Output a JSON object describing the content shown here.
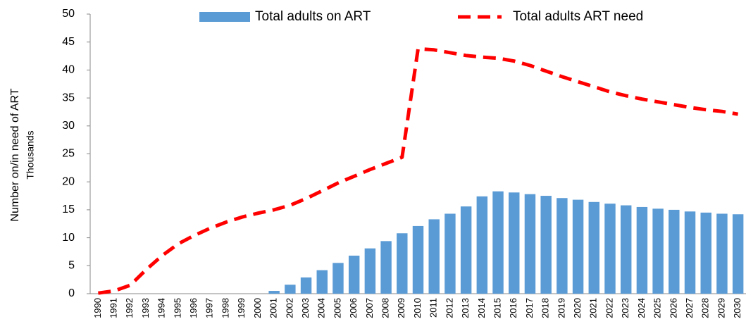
{
  "chart_data": {
    "type": "bar_line",
    "ylabel": "Number on/in need of ART",
    "yunit": "Thousands",
    "categories": [
      "1990",
      "1991",
      "1992",
      "1993",
      "1994",
      "1995",
      "1996",
      "1997",
      "1998",
      "1999",
      "2000",
      "2001",
      "2002",
      "2003",
      "2004",
      "2005",
      "2006",
      "2007",
      "2008",
      "2009",
      "2010",
      "2011",
      "2012",
      "2013",
      "2014",
      "2015",
      "2016",
      "2017",
      "2018",
      "2019",
      "2020",
      "2021",
      "2022",
      "2023",
      "2024",
      "2025",
      "2026",
      "2027",
      "2028",
      "2029",
      "2030"
    ],
    "series": [
      {
        "name": "Total adults on ART",
        "type": "bar",
        "color": "#5b9bd5",
        "values": [
          0,
          0,
          0,
          0,
          0,
          0,
          0,
          0,
          0,
          0,
          0,
          0.5,
          1.6,
          2.9,
          4.2,
          5.5,
          6.8,
          8.1,
          9.4,
          10.8,
          12.1,
          13.3,
          14.3,
          15.6,
          17.4,
          18.3,
          18.1,
          17.8,
          17.5,
          17.1,
          16.8,
          16.4,
          16.1,
          15.8,
          15.5,
          15.2,
          15.0,
          14.7,
          14.5,
          14.3,
          14.2
        ]
      },
      {
        "name": "Total adults ART need",
        "type": "line",
        "color": "#ff0000",
        "values": [
          0.1,
          0.5,
          1.5,
          4.3,
          6.8,
          8.9,
          10.4,
          11.7,
          12.8,
          13.7,
          14.4,
          15.0,
          15.8,
          17.0,
          18.4,
          19.8,
          21.0,
          22.2,
          23.3,
          24.4,
          43.8,
          43.6,
          43.1,
          42.6,
          42.3,
          42.1,
          41.6,
          40.8,
          39.8,
          38.8,
          37.9,
          37.0,
          36.1,
          35.4,
          34.8,
          34.3,
          33.8,
          33.3,
          32.9,
          32.6,
          32.1
        ]
      }
    ],
    "ylim": [
      0,
      50
    ],
    "yticks": [
      0,
      5,
      10,
      15,
      20,
      25,
      30,
      35,
      40,
      45,
      50
    ],
    "grid": false
  }
}
